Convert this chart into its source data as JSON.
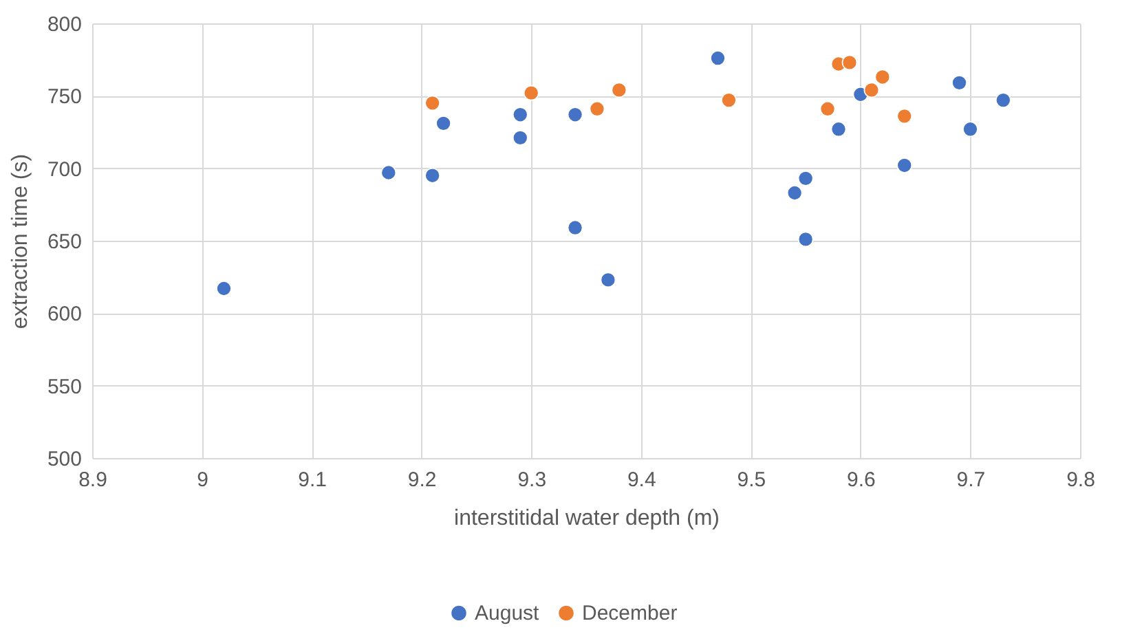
{
  "chart_data": {
    "type": "scatter",
    "xlabel": "interstitidal water depth (m)",
    "ylabel": "extraction time (s)",
    "xlim": [
      8.9,
      9.8
    ],
    "xticks": [
      8.9,
      9,
      9.1,
      9.2,
      9.3,
      9.4,
      9.5,
      9.6,
      9.7,
      9.8
    ],
    "ylim": [
      500,
      800
    ],
    "yticks": [
      500,
      550,
      600,
      650,
      700,
      750,
      800
    ],
    "grid": true,
    "legend": "bottom",
    "marker": "circle",
    "series": [
      {
        "name": "August",
        "color": "#4472c4",
        "x": [
          9.02,
          9.17,
          9.21,
          9.22,
          9.29,
          9.29,
          9.34,
          9.34,
          9.37,
          9.47,
          9.54,
          9.55,
          9.55,
          9.58,
          9.6,
          9.64,
          9.69,
          9.7,
          9.73
        ],
        "values": [
          617,
          697,
          695,
          731,
          737,
          721,
          737,
          659,
          623,
          776,
          683,
          693,
          651,
          727,
          751,
          702,
          759,
          727,
          747
        ]
      },
      {
        "name": "December",
        "color": "#ed7d31",
        "x": [
          9.21,
          9.3,
          9.36,
          9.38,
          9.48,
          9.57,
          9.58,
          9.59,
          9.61,
          9.62,
          9.64
        ],
        "values": [
          745,
          752,
          741,
          754,
          747,
          741,
          772,
          773,
          754,
          763,
          736
        ]
      }
    ]
  }
}
